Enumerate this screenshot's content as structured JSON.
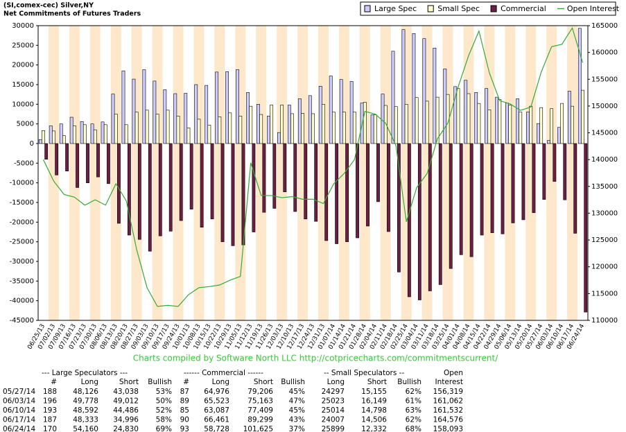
{
  "chart_data": {
    "type": "bar",
    "title": "(SI,comex-cec) Silver,NY",
    "subtitle": "Net Commitments of Futures Traders",
    "footer": "Charts compiled by Software North LLC  http://cotpricecharts.com/commitmentscurrent/",
    "categories": [
      "06/25/13",
      "07/02/13",
      "07/09/13",
      "07/16/13",
      "07/23/13",
      "07/30/13",
      "08/06/13",
      "08/13/13",
      "08/20/13",
      "08/27/13",
      "09/03/13",
      "09/10/13",
      "09/17/13",
      "09/24/13",
      "10/01/13",
      "10/08/13",
      "10/15/13",
      "10/22/13",
      "10/29/13",
      "11/05/13",
      "11/12/13",
      "11/19/13",
      "11/26/13",
      "12/03/13",
      "12/10/13",
      "12/17/13",
      "12/24/13",
      "12/31/13",
      "01/07/14",
      "01/14/14",
      "01/21/14",
      "01/28/14",
      "02/04/14",
      "02/11/14",
      "02/18/14",
      "02/25/14",
      "03/04/14",
      "03/11/14",
      "03/18/14",
      "03/25/14",
      "04/01/14",
      "04/08/14",
      "04/15/14",
      "04/22/14",
      "04/29/14",
      "05/06/14",
      "05/13/14",
      "05/20/14",
      "05/27/14",
      "06/03/14",
      "06/10/14",
      "06/17/14",
      "06/24/14"
    ],
    "series": [
      {
        "name": "Large Spec",
        "color": "#ccccff",
        "values": [
          1000,
          4500,
          5000,
          6700,
          5600,
          5000,
          5500,
          12600,
          18500,
          16400,
          18800,
          15900,
          13700,
          12700,
          12800,
          15000,
          14800,
          18200,
          18300,
          18800,
          13000,
          10000,
          7000,
          2800,
          9800,
          11400,
          12200,
          14600,
          17200,
          16300,
          15800,
          10300,
          7300,
          12600,
          23500,
          29000,
          28000,
          26700,
          24300,
          19000,
          14500,
          16100,
          13000,
          14000,
          11800,
          10300,
          11400,
          8000,
          5088,
          766,
          4106,
          13337,
          29330
        ]
      },
      {
        "name": "Small Spec",
        "color": "#ffffcc",
        "values": [
          3300,
          3200,
          2000,
          4500,
          4800,
          3500,
          4800,
          7500,
          4800,
          8000,
          8500,
          7500,
          8500,
          7000,
          4000,
          6200,
          4700,
          6800,
          7800,
          7000,
          9500,
          7400,
          9800,
          9800,
          7600,
          7700,
          7600,
          10000,
          8000,
          8000,
          8000,
          10500,
          7300,
          9700,
          9400,
          10000,
          11700,
          10800,
          11800,
          12500,
          14000,
          12700,
          10200,
          8600,
          11200,
          9800,
          8000,
          9500,
          9142,
          8874,
          10216,
          9501,
          13567
        ]
      },
      {
        "name": "Commercial",
        "color": "#6b1f45",
        "values": [
          -4000,
          -8000,
          -7000,
          -11200,
          -10000,
          -8500,
          -10200,
          -20300,
          -23300,
          -24400,
          -27400,
          -23500,
          -22300,
          -19600,
          -16700,
          -21300,
          -19200,
          -25000,
          -26000,
          -25800,
          -22500,
          -17500,
          -16500,
          -12300,
          -17300,
          -19200,
          -19800,
          -24700,
          -25500,
          -25000,
          -24000,
          -21000,
          -14800,
          -22400,
          -32700,
          -39000,
          -39800,
          -37500,
          -35900,
          -31800,
          -28300,
          -28800,
          -23300,
          -22700,
          -23000,
          -20200,
          -19400,
          -17600,
          -14230,
          -9640,
          -14322,
          -22838,
          -42897
        ]
      },
      {
        "name": "Open Interest",
        "color": "#33aa33",
        "type": "line",
        "axis": "y2",
        "values": [
          140000,
          136000,
          133500,
          133000,
          131500,
          132500,
          131500,
          135500,
          132300,
          123200,
          116100,
          112600,
          112800,
          112600,
          114800,
          116100,
          116300,
          116600,
          117500,
          118200,
          139400,
          133300,
          133300,
          132900,
          133100,
          132600,
          132600,
          131800,
          135500,
          137400,
          140000,
          149000,
          148500,
          146800,
          142600,
          128400,
          134800,
          137400,
          143900,
          146800,
          153600,
          159400,
          164000,
          156200,
          151000,
          150400,
          149200,
          149800,
          156319,
          161062,
          161532,
          164576,
          158093
        ]
      }
    ],
    "ylim": [
      -45000,
      30000
    ],
    "yticks": [
      -45000,
      -40000,
      -35000,
      -30000,
      -25000,
      -20000,
      -15000,
      -10000,
      -5000,
      0,
      5000,
      10000,
      15000,
      20000,
      25000,
      30000
    ],
    "y2lim": [
      110000,
      165000
    ],
    "y2ticks": [
      110000,
      115000,
      120000,
      125000,
      130000,
      135000,
      140000,
      145000,
      150000,
      155000,
      160000,
      165000
    ],
    "grid": false
  },
  "table": {
    "groups": [
      "--- Large Speculators ---",
      "------ Commercial ------",
      "-- Small Speculators --",
      "Open"
    ],
    "columns": [
      "#",
      "Long",
      "Short",
      "Bullish",
      "#",
      "Long",
      "Short",
      "Bullish",
      "Long",
      "Short",
      "Bullish",
      "Interest"
    ],
    "rows": [
      [
        "05/27/14",
        "188",
        "48,126",
        "43,038",
        "53%",
        "87",
        "64,976",
        "79,206",
        "45%",
        "24297",
        "15,155",
        "62%",
        "156,319"
      ],
      [
        "06/03/14",
        "196",
        "49,778",
        "49,012",
        "50%",
        "89",
        "65,523",
        "75,163",
        "47%",
        "25023",
        "16,149",
        "61%",
        "161,062"
      ],
      [
        "06/10/14",
        "193",
        "48,592",
        "44,486",
        "52%",
        "85",
        "63,087",
        "77,409",
        "45%",
        "25014",
        "14,798",
        "63%",
        "161,532"
      ],
      [
        "06/17/14",
        "187",
        "48,333",
        "34,996",
        "58%",
        "90",
        "66,461",
        "89,299",
        "43%",
        "24007",
        "14,506",
        "62%",
        "164,576"
      ],
      [
        "06/24/14",
        "170",
        "54,160",
        "24,830",
        "69%",
        "93",
        "58,728",
        "101,625",
        "37%",
        "25899",
        "12,332",
        "68%",
        "158,093"
      ]
    ]
  }
}
